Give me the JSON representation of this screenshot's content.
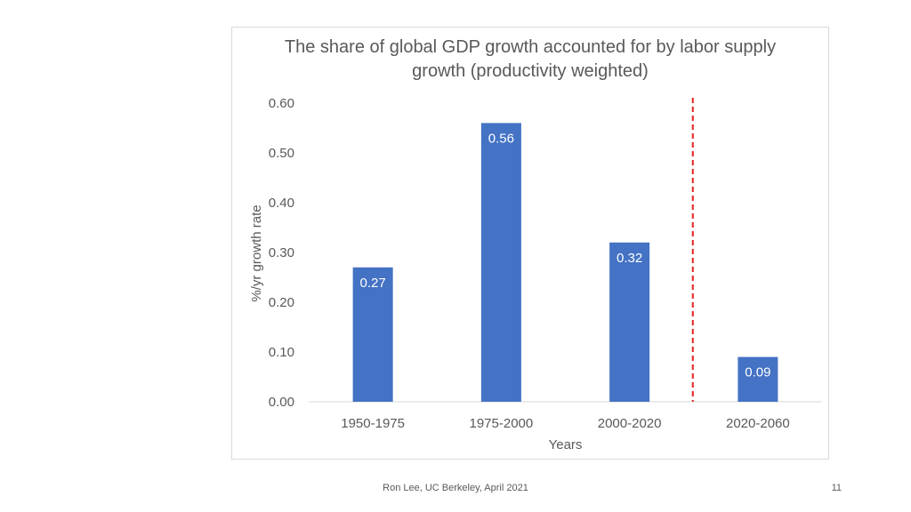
{
  "chart_data": {
    "type": "bar",
    "title": "The share of global GDP growth accounted for by labor supply growth (productivity weighted)",
    "xlabel": "Years",
    "ylabel": "%/yr growth rate",
    "categories": [
      "1950-1975",
      "1975-2000",
      "2000-2020",
      "2020-2060"
    ],
    "values": [
      0.27,
      0.56,
      0.32,
      0.09
    ],
    "data_labels": [
      "0.27",
      "0.56",
      "0.32",
      "0.09"
    ],
    "ylim": [
      0,
      0.6
    ],
    "yticks": [
      0.0,
      0.1,
      0.2,
      0.3,
      0.4,
      0.5,
      0.6
    ],
    "ytick_labels": [
      "0.00",
      "0.10",
      "0.20",
      "0.30",
      "0.40",
      "0.50",
      "0.60"
    ],
    "grid": false,
    "annotations": [
      {
        "type": "vertical-dashed-line",
        "between_categories": [
          "2000-2020",
          "2020-2060"
        ],
        "color": "#e02020"
      }
    ],
    "bar_color": "#4472c4"
  },
  "footer": {
    "credit": "Ron Lee, UC Berkeley, April 2021",
    "slide_number": "11"
  }
}
